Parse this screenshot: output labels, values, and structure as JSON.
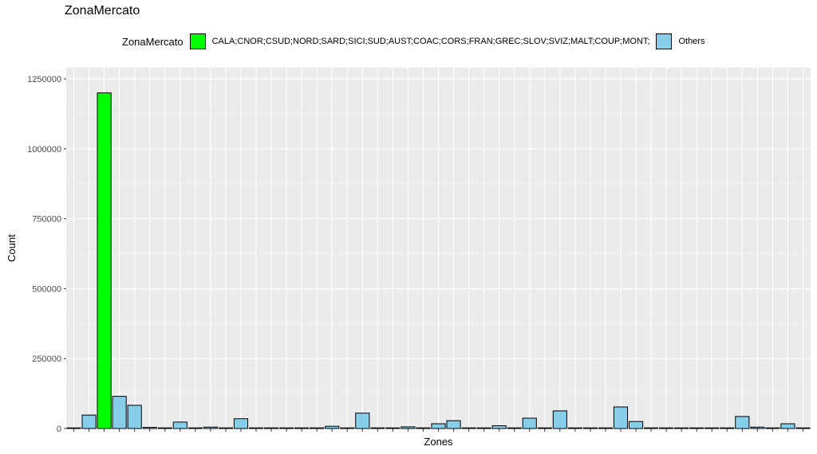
{
  "chart_data": {
    "type": "bar",
    "title": "ZonaMercato",
    "xlabel": "Zones",
    "ylabel": "Count",
    "ylim": [
      0,
      1290000
    ],
    "grid": true,
    "legend": {
      "position": "top",
      "title": "ZonaMercato",
      "entries": [
        {
          "label": "CALA;CNOR;CSUD;NORD;SARD;SICI;SUD;AUST;COAC;CORS;FRAN;GREC;SLOV;SVIZ;MALT;COUP;MONT;",
          "color": "#00ff00"
        },
        {
          "label": "Others",
          "color": "#87ceeb"
        }
      ]
    },
    "y_ticks": [
      0,
      250000,
      500000,
      750000,
      1000000,
      1250000
    ],
    "y_tick_labels": [
      "0",
      "250000",
      "500000",
      "750000",
      "1000000",
      "1250000"
    ],
    "values": [
      0,
      48000,
      1200000,
      115000,
      83000,
      4000,
      1000,
      23000,
      1000,
      5000,
      2000,
      35000,
      2000,
      2000,
      2000,
      1000,
      1000,
      8000,
      1000,
      55000,
      1000,
      1000,
      6000,
      1000,
      17000,
      28000,
      1000,
      1000,
      10000,
      2000,
      37000,
      2000,
      63000,
      1000,
      2000,
      1000,
      77000,
      25000,
      1000,
      1000,
      2000,
      1000,
      1000,
      1000,
      43000,
      5000,
      1000,
      17000,
      1000
    ],
    "groups": [
      "Others",
      "Others",
      "CALA;CNOR;CSUD;NORD;SARD;SICI;SUD;AUST;COAC;CORS;FRAN;GREC;SLOV;SVIZ;MALT;COUP;MONT;",
      "Others",
      "Others",
      "Others",
      "Others",
      "Others",
      "Others",
      "Others",
      "Others",
      "Others",
      "Others",
      "Others",
      "Others",
      "Others",
      "Others",
      "Others",
      "Others",
      "Others",
      "Others",
      "Others",
      "Others",
      "Others",
      "Others",
      "Others",
      "Others",
      "Others",
      "Others",
      "Others",
      "Others",
      "Others",
      "Others",
      "Others",
      "Others",
      "Others",
      "Others",
      "Others",
      "Others",
      "Others",
      "Others",
      "Others",
      "Others",
      "Others",
      "Others",
      "Others",
      "Others",
      "Others",
      "Others"
    ]
  }
}
